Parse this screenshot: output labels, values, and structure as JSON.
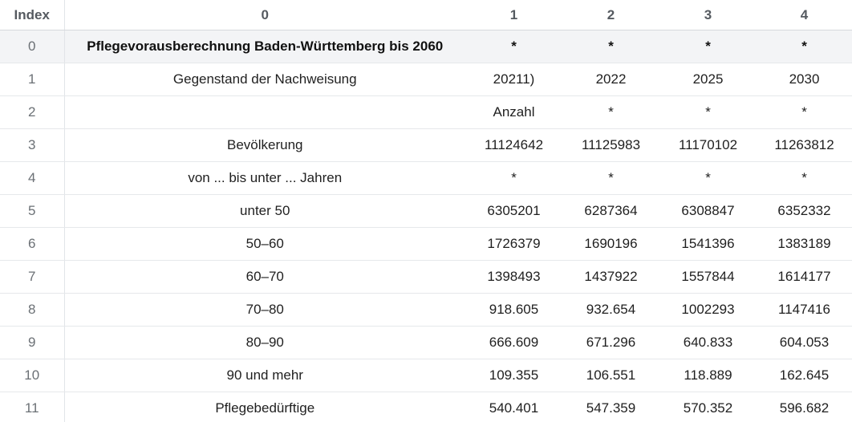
{
  "table": {
    "columns": [
      "Index",
      "0",
      "1",
      "2",
      "3",
      "4"
    ],
    "rows": [
      {
        "index": "0",
        "cells": [
          "Pflegevorausberechnung Baden-Württemberg bis 2060",
          "*",
          "*",
          "*",
          "*"
        ]
      },
      {
        "index": "1",
        "cells": [
          "Gegenstand der Nachweisung",
          "20211)",
          "2022",
          "2025",
          "2030"
        ]
      },
      {
        "index": "2",
        "cells": [
          "",
          "Anzahl",
          "*",
          "*",
          "*"
        ]
      },
      {
        "index": "3",
        "cells": [
          "Bevölkerung",
          "11124642",
          "11125983",
          "11170102",
          "11263812"
        ]
      },
      {
        "index": "4",
        "cells": [
          "von ... bis unter ... Jahren",
          "*",
          "*",
          "*",
          "*"
        ]
      },
      {
        "index": "5",
        "cells": [
          "unter 50",
          "6305201",
          "6287364",
          "6308847",
          "6352332"
        ]
      },
      {
        "index": "6",
        "cells": [
          "50–60",
          "1726379",
          "1690196",
          "1541396",
          "1383189"
        ]
      },
      {
        "index": "7",
        "cells": [
          "60–70",
          "1398493",
          "1437922",
          "1557844",
          "1614177"
        ]
      },
      {
        "index": "8",
        "cells": [
          "70–80",
          "918.605",
          "932.654",
          "1002293",
          "1147416"
        ]
      },
      {
        "index": "9",
        "cells": [
          "80–90",
          "666.609",
          "671.296",
          "640.833",
          "604.053"
        ]
      },
      {
        "index": "10",
        "cells": [
          "90 und mehr",
          "109.355",
          "106.551",
          "118.889",
          "162.645"
        ]
      },
      {
        "index": "11",
        "cells": [
          "Pflegebedürftige",
          "540.401",
          "547.359",
          "570.352",
          "596.682"
        ]
      }
    ]
  },
  "colors": {
    "header_text": "#555a60",
    "index_text": "#6b7075",
    "highlight_row_bg": "#f3f4f6",
    "border": "#e6e8eb"
  }
}
